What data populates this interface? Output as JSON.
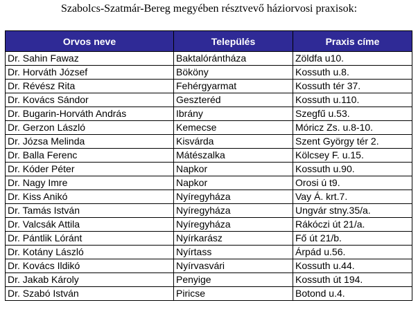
{
  "title": "Szabolcs-Szatmár-Bereg megyében résztvevő háziorvosi praxisok:",
  "table": {
    "headers": [
      "Orvos neve",
      "Település",
      "Praxis címe"
    ],
    "rows": [
      [
        "Dr. Sahin Fawaz",
        "Baktalórántháza",
        "Zöldfa u10."
      ],
      [
        "Dr. Horváth József",
        "Bököny",
        "Kossuth u.8."
      ],
      [
        "Dr. Révész Rita",
        "Fehérgyarmat",
        "Kossuth tér 37."
      ],
      [
        "Dr. Kovács Sándor",
        "Geszteréd",
        "Kossuth u.110."
      ],
      [
        "Dr. Bugarin-Horváth András",
        "Ibrány",
        "Szegfű u.53."
      ],
      [
        "Dr. Gerzon László",
        "Kemecse",
        "Móricz Zs. u.8-10."
      ],
      [
        "Dr. Józsa Melinda",
        "Kisvárda",
        "Szent György tér 2."
      ],
      [
        "Dr. Balla Ferenc",
        "Mátészalka",
        "Kölcsey F. u.15."
      ],
      [
        "Dr. Kóder Péter",
        "Napkor",
        "Kossuth u.90."
      ],
      [
        "Dr. Nagy Imre",
        "Napkor",
        "Orosi ú t9."
      ],
      [
        "Dr. Kiss Anikó",
        "Nyíregyháza",
        "Vay Á. krt.7."
      ],
      [
        "Dr. Tamás István",
        "Nyíregyháza",
        "Ungvár stny.35/a."
      ],
      [
        "Dr. Valcsák Attila",
        "Nyíregyháza",
        "Rákóczi út 21/a."
      ],
      [
        "Dr. Pántlik Lóránt",
        "Nyírkarász",
        "Fő út 21/b."
      ],
      [
        "Dr. Kotány László",
        "Nyírtass",
        "Árpád u.56."
      ],
      [
        "Dr. Kovács Ildikó",
        "Nyírvasvári",
        "Kossuth u.44."
      ],
      [
        "Dr. Jakab Károly",
        "Penyige",
        "Kossuth út 194."
      ],
      [
        "Dr. Szabó István",
        "Piricse",
        "Botond u.4."
      ]
    ]
  },
  "colors": {
    "header_background": "#2f2a96",
    "header_text": "#ffffff"
  }
}
